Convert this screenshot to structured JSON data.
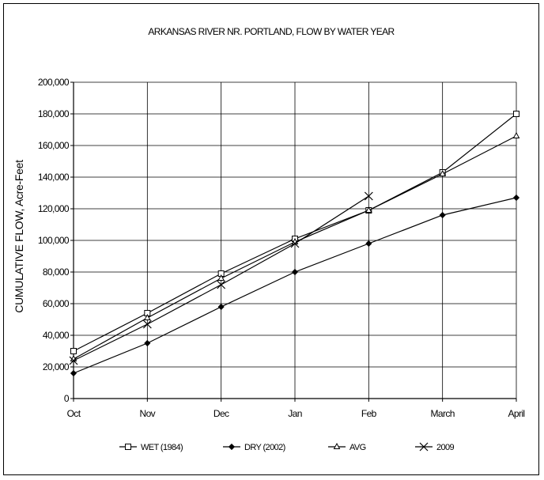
{
  "chart_data": {
    "type": "line",
    "title": "ARKANSAS RIVER NR. PORTLAND, FLOW BY WATER YEAR",
    "ylabel": "CUMULATIVE FLOW, Acre-Feet",
    "xlabel": "",
    "categories": [
      "Oct",
      "Nov",
      "Dec",
      "Jan",
      "Feb",
      "March",
      "April"
    ],
    "ylim": [
      0,
      200000
    ],
    "ytick_step": 20000,
    "ytick_labels": [
      "0",
      "20,000",
      "40,000",
      "60,000",
      "80,000",
      "100,000",
      "120,000",
      "140,000",
      "160,000",
      "180,000",
      "200,000"
    ],
    "grid": true,
    "legend_position": "bottom",
    "series": [
      {
        "name": "WET (1984)",
        "marker": "square",
        "values": [
          30000,
          54000,
          79000,
          101000,
          119000,
          143000,
          180000
        ]
      },
      {
        "name": "DRY (2002)",
        "marker": "diamond",
        "values": [
          16000,
          35000,
          58000,
          80000,
          98000,
          116000,
          127000
        ]
      },
      {
        "name": "AVG",
        "marker": "triangle",
        "values": [
          25000,
          51000,
          76000,
          99000,
          119000,
          142000,
          166000
        ]
      },
      {
        "name": "2009",
        "marker": "x",
        "values": [
          24000,
          47000,
          72000,
          98000,
          128000,
          null,
          null
        ]
      }
    ]
  }
}
